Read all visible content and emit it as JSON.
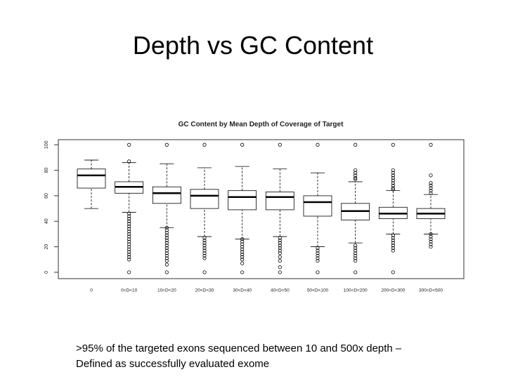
{
  "slide_title": "Depth vs GC Content",
  "caption": [
    ">95% of the targeted exons sequenced between 10 and 500x depth –",
    "Defined as successfully evaluated exome"
  ],
  "chart_data": {
    "type": "boxplot",
    "title": "GC Content by Mean Depth of Coverage of Target",
    "categories": [
      "0",
      "0<D<10",
      "10<D<20",
      "20<D<30",
      "30<D<40",
      "40<D<50",
      "50<D<100",
      "100<D<200",
      "200<D<300",
      "300<D<500"
    ],
    "whisker_low": [
      50,
      47,
      35,
      28,
      26,
      28,
      20,
      23,
      30,
      30
    ],
    "q1": [
      66,
      62,
      54,
      50,
      49,
      49,
      44,
      41,
      42,
      42
    ],
    "median": [
      76,
      67,
      62,
      60,
      59,
      59,
      55,
      48,
      46,
      46
    ],
    "q3": [
      81,
      71,
      67,
      65,
      64,
      63,
      60,
      54,
      51,
      50
    ],
    "whisker_high": [
      88,
      86,
      85,
      82,
      83,
      81,
      78,
      71,
      64,
      61
    ],
    "outliers": [
      [],
      [
        100,
        87,
        46,
        44,
        42,
        40,
        38,
        36,
        34,
        32,
        30,
        28,
        26,
        24,
        22,
        20,
        18,
        16,
        14,
        12,
        10,
        0
      ],
      [
        100,
        35,
        33,
        31,
        29,
        27,
        25,
        23,
        21,
        19,
        17,
        15,
        13,
        11,
        9,
        6,
        0
      ],
      [
        100,
        27,
        25,
        23,
        21,
        19,
        17,
        15,
        13,
        11,
        0
      ],
      [
        100,
        26,
        24,
        22,
        20,
        18,
        16,
        14,
        12,
        10,
        7,
        0
      ],
      [
        100,
        27,
        25,
        23,
        21,
        19,
        17,
        15,
        12,
        9,
        4,
        0
      ],
      [
        100,
        19,
        17,
        15,
        13,
        11,
        9,
        0
      ],
      [
        100,
        80,
        78,
        76,
        74,
        73,
        21,
        19,
        17,
        15,
        13,
        11,
        9,
        0
      ],
      [
        100,
        80,
        78,
        76,
        74,
        72,
        70,
        68,
        66,
        65,
        29,
        27,
        25,
        23,
        21,
        19,
        17,
        0
      ],
      [
        100,
        76,
        70,
        68,
        66,
        64,
        62,
        30,
        28,
        26,
        24,
        22,
        20
      ]
    ],
    "ylim": [
      -5,
      104
    ],
    "yticks": [
      0,
      20,
      40,
      60,
      80,
      100
    ],
    "color": "#000000"
  }
}
